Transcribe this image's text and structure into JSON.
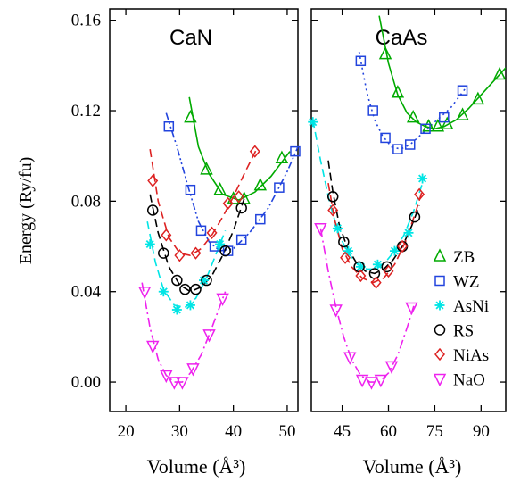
{
  "chart_data": [
    {
      "type": "scatter",
      "title": "CaN",
      "xlabel": "Volume (Å³)",
      "ylabel": "Energy (Ry/fu)",
      "xlim": [
        17,
        52
      ],
      "ylim": [
        -0.013,
        0.165
      ],
      "xticks": [
        20,
        30,
        40,
        50
      ],
      "yticks": [
        0.0,
        0.04,
        0.08,
        0.12,
        0.16
      ],
      "ytick_labels": [
        "0.00",
        "0.04",
        "0.08",
        "0.12",
        "0.16"
      ],
      "grid": false,
      "series": [
        {
          "name": "ZB",
          "color": "#00aa00",
          "marker": "triangle-up",
          "line": "solid",
          "x": [
            32.0,
            35.0,
            37.5,
            40.0,
            42.0,
            45.0,
            49.0
          ],
          "y": [
            0.117,
            0.094,
            0.085,
            0.081,
            0.081,
            0.087,
            0.099
          ],
          "curve": [
            [
              31.8,
              0.126
            ],
            [
              33.5,
              0.104
            ],
            [
              35.5,
              0.092
            ],
            [
              38.0,
              0.083
            ],
            [
              41.0,
              0.0805
            ],
            [
              44.0,
              0.084
            ],
            [
              47.0,
              0.091
            ],
            [
              50.5,
              0.102
            ]
          ]
        },
        {
          "name": "WZ",
          "color": "#2244dd",
          "marker": "square",
          "line": "dash-dot-dot",
          "x": [
            28.0,
            32.0,
            34.0,
            36.5,
            39.0,
            41.5,
            45.0,
            48.5,
            51.5
          ],
          "y": [
            0.113,
            0.085,
            0.067,
            0.06,
            0.058,
            0.063,
            0.072,
            0.086,
            0.102
          ],
          "curve": [
            [
              27.5,
              0.119
            ],
            [
              29.5,
              0.104
            ],
            [
              31.5,
              0.087
            ],
            [
              33.5,
              0.071
            ],
            [
              35.5,
              0.062
            ],
            [
              37.5,
              0.058
            ],
            [
              40.0,
              0.059
            ],
            [
              43.0,
              0.066
            ],
            [
              46.5,
              0.077
            ],
            [
              50.0,
              0.093
            ],
            [
              52.0,
              0.104
            ]
          ]
        },
        {
          "name": "AsNi",
          "color": "#00e5e5",
          "marker": "asterisk",
          "line": "dashed",
          "x": [
            24.5,
            27.0,
            29.5,
            32.0,
            34.5,
            37.5
          ],
          "y": [
            0.061,
            0.04,
            0.032,
            0.034,
            0.045,
            0.061
          ],
          "curve": [
            [
              24.0,
              0.071
            ],
            [
              25.5,
              0.053
            ],
            [
              27.0,
              0.041
            ],
            [
              29.0,
              0.034
            ],
            [
              31.0,
              0.033
            ],
            [
              33.0,
              0.037
            ],
            [
              35.0,
              0.046
            ],
            [
              37.0,
              0.058
            ],
            [
              38.5,
              0.067
            ]
          ]
        },
        {
          "name": "RS",
          "color": "#000000",
          "marker": "circle",
          "line": "dashed",
          "x": [
            25.0,
            27.0,
            29.5,
            31.0,
            33.0,
            35.0,
            38.5,
            41.5
          ],
          "y": [
            0.076,
            0.057,
            0.045,
            0.041,
            0.041,
            0.045,
            0.058,
            0.077
          ],
          "curve": [
            [
              24.5,
              0.083
            ],
            [
              26.0,
              0.066
            ],
            [
              28.0,
              0.051
            ],
            [
              30.0,
              0.043
            ],
            [
              32.0,
              0.04
            ],
            [
              34.0,
              0.042
            ],
            [
              36.0,
              0.047
            ],
            [
              38.0,
              0.056
            ],
            [
              40.0,
              0.067
            ],
            [
              42.0,
              0.081
            ]
          ]
        },
        {
          "name": "NiAs",
          "color": "#dd2222",
          "marker": "diamond",
          "line": "dashed",
          "x": [
            25.0,
            27.5,
            30.0,
            33.0,
            36.0,
            39.0,
            41.0,
            44.0
          ],
          "y": [
            0.089,
            0.065,
            0.056,
            0.057,
            0.066,
            0.079,
            0.082,
            0.102
          ],
          "curve": [
            [
              24.5,
              0.103
            ],
            [
              26.0,
              0.08
            ],
            [
              28.0,
              0.064
            ],
            [
              30.0,
              0.057
            ],
            [
              32.0,
              0.056
            ],
            [
              34.0,
              0.059
            ],
            [
              36.0,
              0.065
            ],
            [
              38.0,
              0.073
            ],
            [
              40.0,
              0.082
            ],
            [
              42.0,
              0.092
            ],
            [
              44.5,
              0.104
            ]
          ]
        },
        {
          "name": "NaO",
          "color": "#ee22ee",
          "marker": "triangle-down",
          "line": "dash-dot",
          "x": [
            23.5,
            25.0,
            27.5,
            29.0,
            30.5,
            32.5,
            35.5,
            38.0
          ],
          "y": [
            0.04,
            0.016,
            0.003,
            0.0,
            0.0,
            0.006,
            0.021,
            0.037
          ],
          "curve": [
            [
              23.0,
              0.044
            ],
            [
              24.5,
              0.024
            ],
            [
              26.0,
              0.01
            ],
            [
              27.5,
              0.003
            ],
            [
              29.0,
              0.0
            ],
            [
              30.5,
              0.0
            ],
            [
              32.0,
              0.004
            ],
            [
              34.0,
              0.012
            ],
            [
              36.0,
              0.024
            ],
            [
              38.5,
              0.04
            ]
          ]
        }
      ]
    },
    {
      "type": "scatter",
      "title": "CaAs",
      "xlabel": "Volume (Å³)",
      "ylabel": "",
      "xlim": [
        35,
        98
      ],
      "ylim": [
        -0.013,
        0.165
      ],
      "xticks": [
        45,
        60,
        75,
        90
      ],
      "yticks": [
        0.0,
        0.04,
        0.08,
        0.12,
        0.16
      ],
      "grid": false,
      "series": [
        {
          "name": "ZB",
          "color": "#00aa00",
          "marker": "triangle-up",
          "line": "solid",
          "x": [
            59.0,
            63.0,
            68.0,
            73.0,
            76.0,
            79.0,
            84.0,
            89.0,
            96.0
          ],
          "y": [
            0.145,
            0.128,
            0.117,
            0.113,
            0.113,
            0.114,
            0.118,
            0.125,
            0.136
          ],
          "curve": [
            [
              57.0,
              0.162
            ],
            [
              60.0,
              0.141
            ],
            [
              63.0,
              0.127
            ],
            [
              66.0,
              0.119
            ],
            [
              69.0,
              0.115
            ],
            [
              72.0,
              0.113
            ],
            [
              75.0,
              0.112
            ],
            [
              78.0,
              0.113
            ],
            [
              82.0,
              0.116
            ],
            [
              86.0,
              0.121
            ],
            [
              90.0,
              0.127
            ],
            [
              94.0,
              0.133
            ],
            [
              98.0,
              0.139
            ]
          ]
        },
        {
          "name": "WZ",
          "color": "#2244dd",
          "marker": "square",
          "line": "dotted",
          "x": [
            51.0,
            55.0,
            59.0,
            63.0,
            67.0,
            72.0,
            78.0,
            84.0
          ],
          "y": [
            0.142,
            0.12,
            0.108,
            0.103,
            0.105,
            0.112,
            0.117,
            0.129
          ],
          "curve": [
            [
              50.5,
              0.146
            ],
            [
              53.0,
              0.128
            ],
            [
              55.5,
              0.116
            ],
            [
              58.0,
              0.109
            ],
            [
              61.0,
              0.104
            ],
            [
              64.0,
              0.103
            ],
            [
              67.0,
              0.105
            ],
            [
              71.0,
              0.11
            ],
            [
              75.0,
              0.115
            ],
            [
              80.0,
              0.121
            ],
            [
              85.0,
              0.13
            ]
          ]
        },
        {
          "name": "AsNi",
          "color": "#00e5e5",
          "marker": "asterisk",
          "line": "dashed",
          "x": [
            35.5,
            43.5,
            47.0,
            51.0,
            56.5,
            62.0,
            66.5,
            71.0
          ],
          "y": [
            0.115,
            0.068,
            0.058,
            0.051,
            0.052,
            0.058,
            0.066,
            0.09
          ],
          "curve": [
            [
              35.5,
              0.116
            ],
            [
              38.0,
              0.098
            ],
            [
              41.0,
              0.079
            ],
            [
              44.0,
              0.065
            ],
            [
              47.0,
              0.057
            ],
            [
              50.0,
              0.052
            ],
            [
              53.0,
              0.05
            ],
            [
              56.0,
              0.05
            ],
            [
              59.0,
              0.053
            ],
            [
              62.0,
              0.058
            ],
            [
              65.0,
              0.065
            ],
            [
              68.0,
              0.075
            ],
            [
              71.0,
              0.088
            ]
          ]
        },
        {
          "name": "RS",
          "color": "#000000",
          "marker": "circle",
          "line": "dashed",
          "x": [
            42.0,
            45.5,
            50.5,
            55.5,
            59.5,
            64.5,
            68.5
          ],
          "y": [
            0.082,
            0.062,
            0.051,
            0.048,
            0.051,
            0.06,
            0.073
          ],
          "curve": [
            [
              40.5,
              0.098
            ],
            [
              42.0,
              0.084
            ],
            [
              44.0,
              0.07
            ],
            [
              46.5,
              0.06
            ],
            [
              49.5,
              0.053
            ],
            [
              52.5,
              0.049
            ],
            [
              55.5,
              0.048
            ],
            [
              58.5,
              0.05
            ],
            [
              61.5,
              0.054
            ],
            [
              64.5,
              0.06
            ],
            [
              67.5,
              0.069
            ],
            [
              70.0,
              0.078
            ]
          ]
        },
        {
          "name": "NiAs",
          "color": "#dd2222",
          "marker": "diamond",
          "line": "dashed",
          "x": [
            42.0,
            46.0,
            51.0,
            56.0,
            60.0,
            64.5,
            70.0
          ],
          "y": [
            0.076,
            0.055,
            0.047,
            0.044,
            0.049,
            0.06,
            0.083
          ],
          "curve": [
            [
              40.5,
              0.088
            ],
            [
              42.5,
              0.072
            ],
            [
              45.0,
              0.059
            ],
            [
              48.0,
              0.051
            ],
            [
              51.5,
              0.046
            ],
            [
              55.0,
              0.044
            ],
            [
              58.5,
              0.046
            ],
            [
              62.0,
              0.052
            ],
            [
              65.5,
              0.062
            ],
            [
              69.0,
              0.076
            ],
            [
              71.0,
              0.085
            ]
          ]
        },
        {
          "name": "NaO",
          "color": "#ee22ee",
          "marker": "triangle-down",
          "line": "dash-dot",
          "x": [
            38.0,
            43.0,
            47.5,
            51.5,
            54.5,
            57.5,
            61.0,
            67.5
          ],
          "y": [
            0.068,
            0.032,
            0.011,
            0.001,
            0.0,
            0.001,
            0.007,
            0.033
          ],
          "curve": [
            [
              38.0,
              0.068
            ],
            [
              40.5,
              0.049
            ],
            [
              43.0,
              0.033
            ],
            [
              45.5,
              0.02
            ],
            [
              48.0,
              0.01
            ],
            [
              51.0,
              0.003
            ],
            [
              54.0,
              0.0
            ],
            [
              57.0,
              0.0
            ],
            [
              60.0,
              0.004
            ],
            [
              63.0,
              0.012
            ],
            [
              66.0,
              0.024
            ],
            [
              68.5,
              0.035
            ]
          ]
        }
      ]
    }
  ],
  "legend": {
    "placement": "right of lower CaAs panel",
    "entries": [
      {
        "label": "ZB",
        "color": "#00aa00",
        "marker": "triangle-up"
      },
      {
        "label": "WZ",
        "color": "#2244dd",
        "marker": "square"
      },
      {
        "label": "AsNi",
        "color": "#00e5e5",
        "marker": "asterisk"
      },
      {
        "label": "RS",
        "color": "#000000",
        "marker": "circle"
      },
      {
        "label": "NiAs",
        "color": "#dd2222",
        "marker": "diamond"
      },
      {
        "label": "NaO",
        "color": "#ee22ee",
        "marker": "triangle-down"
      }
    ]
  }
}
